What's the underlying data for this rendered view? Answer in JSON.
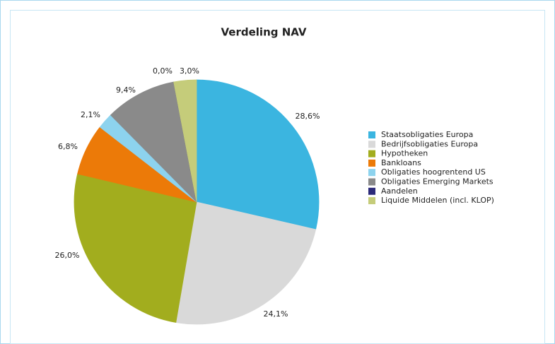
{
  "chart_data": {
    "type": "pie",
    "title": "Verdeling NAV",
    "categories": [
      "Staatsobligaties Europa",
      "Bedrijfsobligaties Europa",
      "Hypotheken",
      "Bankloans",
      "Obligaties hoogrentend US",
      "Obligaties Emerging Markets",
      "Aandelen",
      "Liquide Middelen (incl. KLOP)"
    ],
    "values": [
      28.6,
      24.1,
      26.0,
      6.8,
      2.1,
      9.4,
      0.0,
      3.0
    ],
    "value_labels": [
      "28,6%",
      "24,1%",
      "26,0%",
      "6,8%",
      "2,1%",
      "9,4%",
      "0,0%",
      "3,0%"
    ],
    "colors": [
      "#3bb5e0",
      "#d9d9d9",
      "#a2ad1e",
      "#ec7a08",
      "#8dd3ee",
      "#8a8a8a",
      "#2c2a7a",
      "#c5cc7a"
    ],
    "legend": "right"
  }
}
